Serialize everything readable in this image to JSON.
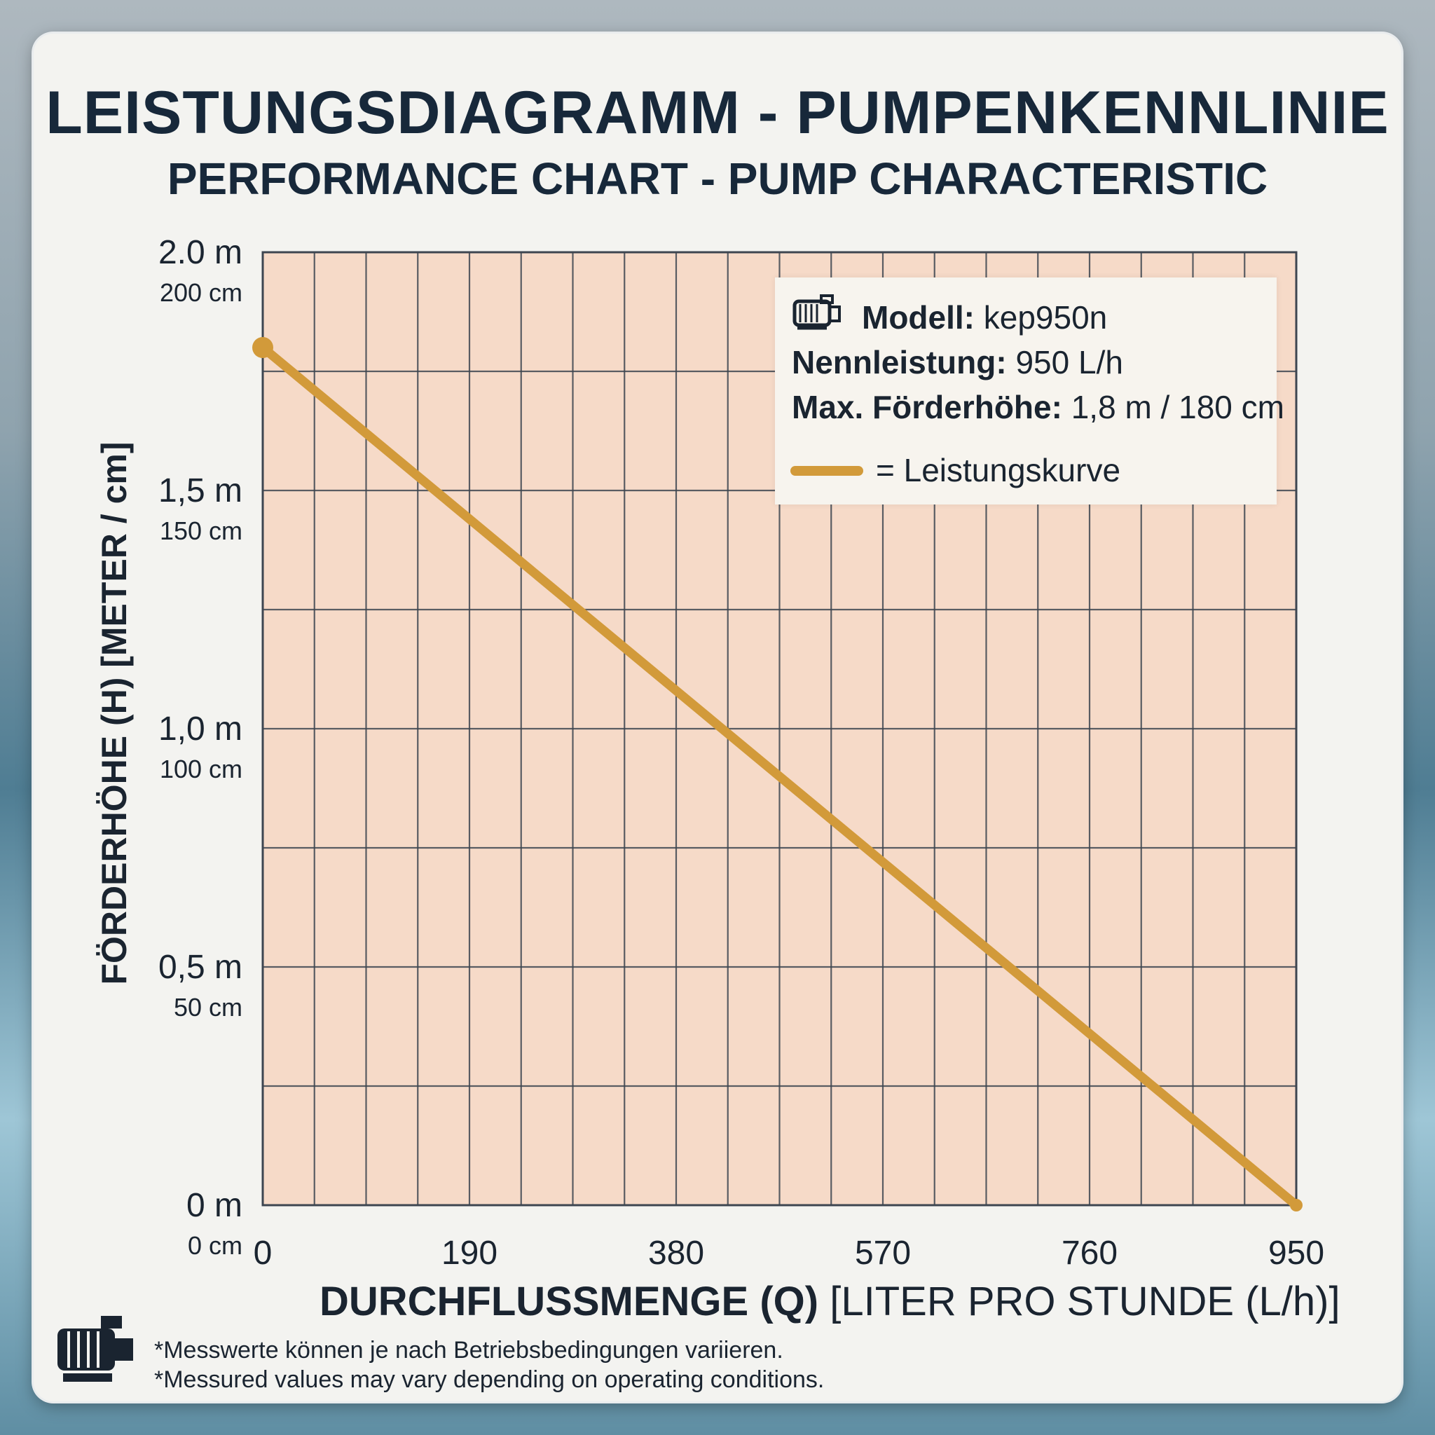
{
  "chart_data": {
    "type": "line",
    "title": "LEISTUNGSDIAGRAMM - PUMPENKENNLINIE",
    "subtitle": "PERFORMANCE CHART - PUMP CHARACTERISTIC",
    "xlabel_bold": "DURCHFLUSSMENGE (Q)",
    "xlabel_unit": "[LITER PRO STUNDE (L/h)]",
    "ylabel": "FÖRDERHÖHE (H) [METER / cm]",
    "xlim": [
      0,
      950
    ],
    "ylim": [
      0,
      2.0
    ],
    "x_ticks": [
      "0",
      "190",
      "380",
      "570",
      "760",
      "950"
    ],
    "x_tick_values": [
      0,
      190,
      380,
      570,
      760,
      950
    ],
    "y_ticks": [
      {
        "value": 2.0,
        "m": "2.0 m",
        "cm": "200 cm"
      },
      {
        "value": 1.5,
        "m": "1,5 m",
        "cm": "150 cm"
      },
      {
        "value": 1.0,
        "m": "1,0 m",
        "cm": "100 cm"
      },
      {
        "value": 0.5,
        "m": "0,5 m",
        "cm": "50 cm"
      },
      {
        "value": 0.0,
        "m": "0 m",
        "cm": "0 cm"
      }
    ],
    "grid": true,
    "grid_x_step": 47.5,
    "grid_y_step": 0.25,
    "legend_position": "top-right",
    "series": [
      {
        "name": "Leistungskurve",
        "color": "#d29a3a",
        "x": [
          0,
          950
        ],
        "y": [
          1.8,
          0.0
        ]
      }
    ]
  },
  "legend": {
    "model_label": "Modell:",
    "model_value": "kep950n",
    "rated_label": "Nennleistung:",
    "rated_value": "950 L/h",
    "maxhead_label": "Max. Förderhöhe:",
    "maxhead_value": "1,8 m / 180 cm",
    "curve_text": "= Leistungskurve",
    "icon": "pump-icon"
  },
  "footer": {
    "note_de": "*Messwerte können je nach Betriebsbedingungen variieren.",
    "note_en": "*Messured values may vary depending on operating conditions.",
    "icon": "pump-icon"
  },
  "colors": {
    "plot_bg": "#f6dac8",
    "grid": "#3d4550",
    "curve": "#d29a3a",
    "text": "#1a2430"
  }
}
